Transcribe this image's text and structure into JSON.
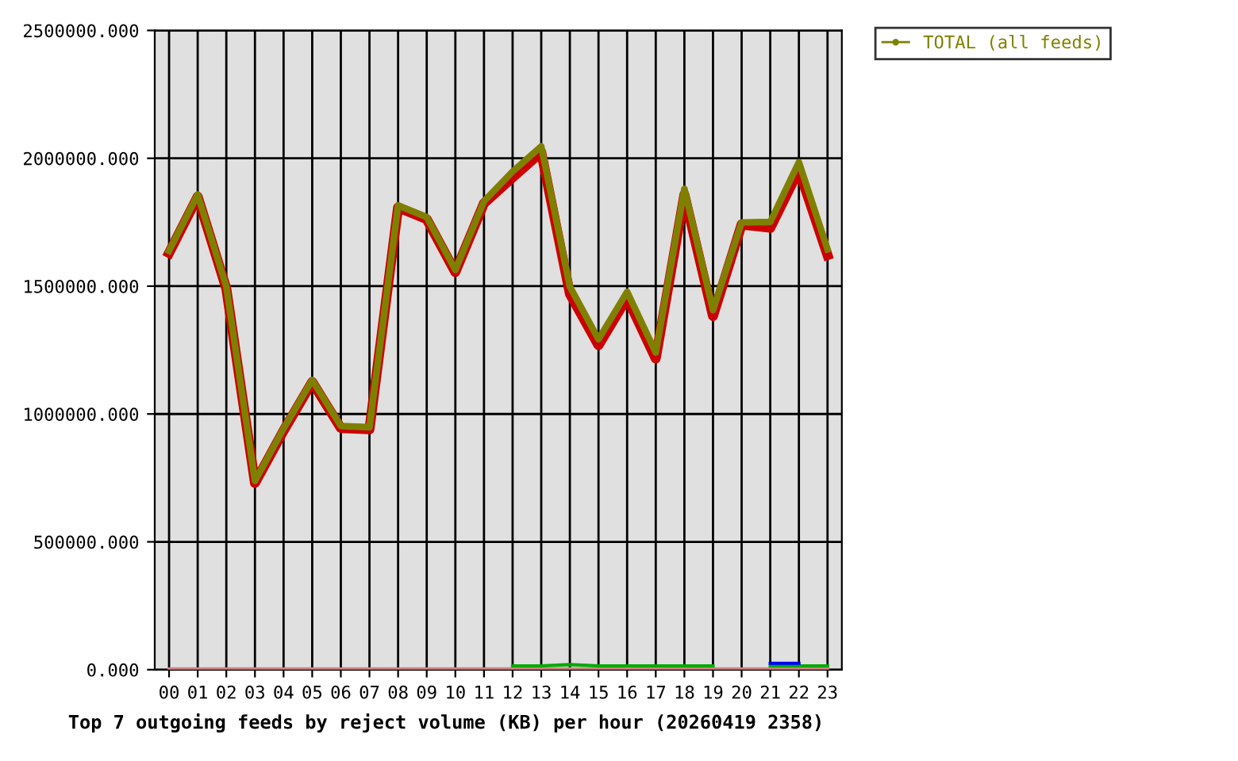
{
  "chart_data": {
    "type": "line",
    "title": "Top 7 outgoing feeds by reject volume (KB) per hour (20260419 2358)",
    "categories": [
      "00",
      "01",
      "02",
      "03",
      "04",
      "05",
      "06",
      "07",
      "08",
      "09",
      "10",
      "11",
      "12",
      "13",
      "14",
      "15",
      "16",
      "17",
      "18",
      "19",
      "20",
      "21",
      "22",
      "23"
    ],
    "series": [
      {
        "color": "#cc0000",
        "values": [
          1630000,
          1850000,
          1490000,
          730000,
          935000,
          1125000,
          945000,
          940000,
          1808000,
          1762000,
          1555000,
          1824000,
          1925000,
          2024000,
          1470000,
          1269000,
          1455000,
          1217000,
          1858000,
          1383000,
          1741000,
          1728000,
          1955000,
          1621000
        ]
      },
      {
        "color": "#d08080",
        "values": [
          3000,
          3000,
          3000,
          3000,
          3000,
          3000,
          3000,
          3000,
          3000,
          3000,
          3000,
          3000,
          3000,
          3000,
          3000,
          3000,
          3000,
          3000,
          3000,
          3000,
          3000,
          3000,
          3000,
          3000
        ]
      },
      {
        "color": "#00aa00",
        "values": [
          null,
          null,
          null,
          null,
          null,
          null,
          null,
          null,
          null,
          null,
          null,
          null,
          15000,
          15000,
          20000,
          15000,
          15000,
          15000,
          15000,
          15000,
          null,
          15000,
          15000,
          15000
        ]
      },
      {
        "color": "#0000ff",
        "values": [
          null,
          null,
          null,
          null,
          null,
          null,
          null,
          null,
          null,
          null,
          null,
          null,
          null,
          null,
          null,
          null,
          null,
          null,
          null,
          null,
          null,
          25000,
          25000,
          null
        ]
      },
      {
        "name": "TOTAL (all feeds)",
        "color": "#808000",
        "values": [
          1638000,
          1858000,
          1498000,
          738000,
          943000,
          1133000,
          953000,
          948000,
          1816000,
          1770000,
          1563000,
          1832000,
          1948000,
          2047000,
          1498000,
          1292000,
          1478000,
          1240000,
          1881000,
          1406000,
          1749000,
          1751000,
          1985000,
          1644000
        ]
      }
    ],
    "ylim": [
      0,
      2500000
    ],
    "yticks": [
      {
        "value": 0,
        "label": "0.000"
      },
      {
        "value": 500000,
        "label": "500000.000"
      },
      {
        "value": 1000000,
        "label": "1000000.000"
      },
      {
        "value": 1500000,
        "label": "1500000.000"
      },
      {
        "value": 2000000,
        "label": "2000000.000"
      },
      {
        "value": 2500000,
        "label": "2500000.000"
      }
    ],
    "grid": true,
    "legend": "top right",
    "marker": "none",
    "line_style": "solid"
  }
}
